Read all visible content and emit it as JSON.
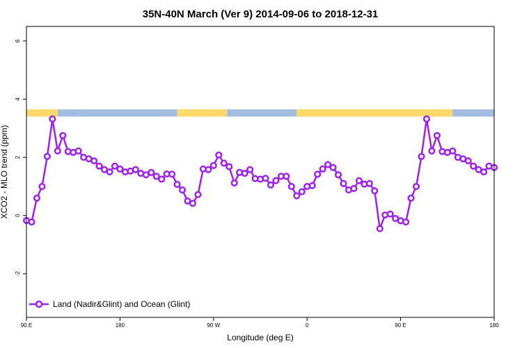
{
  "chart_data": {
    "type": "line",
    "title": "35N-40N March (Ver 9)   2014-09-06 to 2018-12-31",
    "xlabel": "Longitude (deg E)",
    "ylabel": "XCO2 - MLO trend (ppm)",
    "xlim": [
      90,
      540
    ],
    "ylim": [
      -3.5,
      6.5
    ],
    "x_ticks": [
      {
        "value": 90,
        "label": "90 E"
      },
      {
        "value": 180,
        "label": "180"
      },
      {
        "value": 270,
        "label": "90 W"
      },
      {
        "value": 360,
        "label": "0"
      },
      {
        "value": 450,
        "label": "90 E"
      },
      {
        "value": 540,
        "label": "180"
      }
    ],
    "y_ticks": [
      {
        "value": -2,
        "label": "-2"
      },
      {
        "value": 0,
        "label": "0"
      },
      {
        "value": 2,
        "label": "2"
      },
      {
        "value": 4,
        "label": "4"
      },
      {
        "value": 6,
        "label": "6"
      }
    ],
    "grid": false,
    "legend_position": "bottom-left",
    "colors": {
      "series": "#a020f0",
      "land": "#ffd86b",
      "ocean": "#a3bde0"
    },
    "surface_strip": {
      "y_range": [
        3.4,
        3.65
      ],
      "segments": [
        {
          "from": 90,
          "to": 120,
          "type": "land"
        },
        {
          "from": 120,
          "to": 140,
          "type": "ocean"
        },
        {
          "from": 140,
          "to": 235,
          "type": "ocean"
        },
        {
          "from": 235,
          "to": 283,
          "type": "land"
        },
        {
          "from": 283,
          "to": 350,
          "type": "ocean"
        },
        {
          "from": 350,
          "to": 415,
          "type": "land"
        },
        {
          "from": 415,
          "to": 450,
          "type": "land"
        },
        {
          "from": 450,
          "to": 475,
          "type": "land"
        },
        {
          "from": 475,
          "to": 500,
          "type": "land"
        },
        {
          "from": 500,
          "to": 540,
          "type": "ocean"
        }
      ]
    },
    "series": [
      {
        "name": "Land (Nadir&Glint) and Ocean (Glint)",
        "x": [
          90,
          95,
          100,
          105,
          110,
          115,
          120,
          125,
          130,
          135,
          140,
          145,
          150,
          155,
          160,
          165,
          170,
          175,
          180,
          185,
          190,
          195,
          200,
          205,
          210,
          215,
          220,
          225,
          230,
          235,
          240,
          245,
          250,
          255,
          260,
          265,
          270,
          275,
          280,
          285,
          290,
          295,
          300,
          305,
          310,
          315,
          320,
          325,
          330,
          335,
          340,
          345,
          350,
          355,
          360,
          365,
          370,
          375,
          380,
          385,
          390,
          395,
          400,
          405,
          410,
          415,
          420,
          425,
          430,
          435,
          440,
          445,
          450,
          455,
          460,
          465,
          470,
          475,
          480,
          485,
          490,
          495,
          500,
          505,
          510,
          515,
          520,
          525,
          530,
          535,
          540
        ],
        "y": [
          -0.17,
          -0.22,
          0.6,
          1.0,
          2.03,
          3.32,
          2.22,
          2.75,
          2.2,
          2.17,
          2.22,
          2.0,
          1.95,
          1.88,
          1.7,
          1.58,
          1.5,
          1.7,
          1.6,
          1.5,
          1.53,
          1.58,
          1.45,
          1.4,
          1.48,
          1.35,
          1.25,
          1.43,
          1.42,
          1.07,
          0.88,
          0.5,
          0.42,
          0.72,
          1.6,
          1.58,
          1.72,
          2.08,
          1.8,
          1.68,
          1.12,
          1.48,
          1.45,
          1.58,
          1.27,
          1.25,
          1.28,
          1.05,
          1.2,
          1.35,
          1.35,
          1.0,
          0.68,
          0.82,
          1.0,
          1.03,
          1.42,
          1.6,
          1.75,
          1.65,
          1.4,
          1.1,
          0.88,
          0.93,
          1.2,
          1.08,
          1.1,
          0.85,
          -0.45,
          0.02,
          0.05,
          -0.1,
          -0.18,
          -0.22,
          0.6,
          1.0,
          2.03,
          3.32,
          2.22,
          2.75,
          2.2,
          2.17,
          2.22,
          2.0,
          1.95,
          1.88,
          1.7,
          1.58,
          1.5,
          1.7,
          1.65
        ]
      }
    ]
  }
}
